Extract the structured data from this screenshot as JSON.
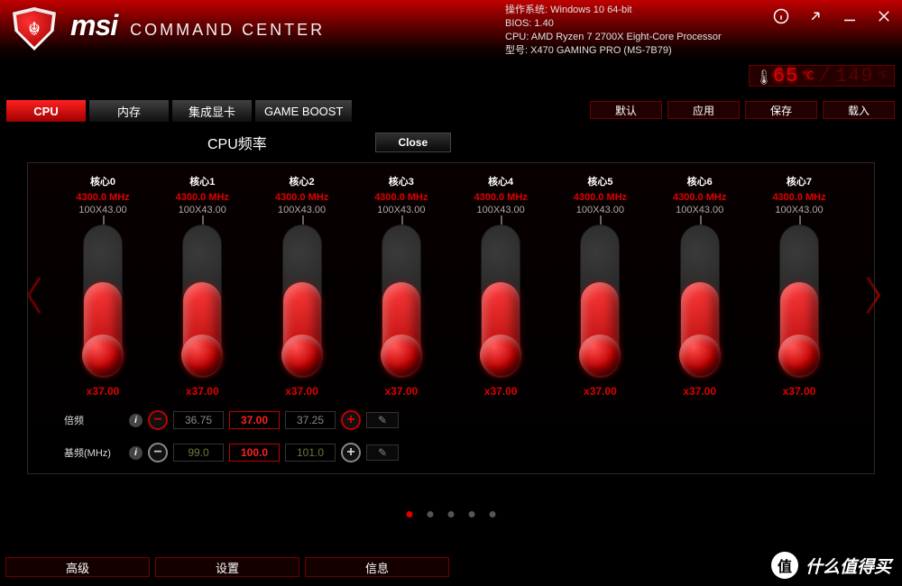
{
  "brand": {
    "msi": "msi",
    "cc": "COMMAND CENTER"
  },
  "sysinfo": {
    "os_k": "操作系统: ",
    "os_v": "Windows 10 64-bit",
    "bios_k": "BIOS: ",
    "bios_v": "1.40",
    "cpu_k": "CPU: ",
    "cpu_v": "AMD Ryzen 7 2700X Eight-Core Processor",
    "model_k": "型号: ",
    "model_v": "X470 GAMING PRO (MS-7B79)"
  },
  "temp": {
    "cpu": "65",
    "cpu_unit": "℃",
    "sep": "/",
    "other": "149",
    "other_unit": "℉"
  },
  "tabs": [
    {
      "label": "CPU",
      "active": true
    },
    {
      "label": "内存",
      "active": false
    },
    {
      "label": "集成显卡",
      "active": false
    },
    {
      "label": "GAME BOOST",
      "active": false
    }
  ],
  "actions": [
    "默认",
    "应用",
    "保存",
    "载入"
  ],
  "panel": {
    "title": "CPU频率",
    "close": "Close"
  },
  "cores": [
    {
      "name": "核心0",
      "freq": "4300.0 MHz",
      "mult": "100X43.00",
      "mval": "x37.00",
      "fill_pct": 62
    },
    {
      "name": "核心1",
      "freq": "4300.0 MHz",
      "mult": "100X43.00",
      "mval": "x37.00",
      "fill_pct": 62
    },
    {
      "name": "核心2",
      "freq": "4300.0 MHz",
      "mult": "100X43.00",
      "mval": "x37.00",
      "fill_pct": 62
    },
    {
      "name": "核心3",
      "freq": "4300.0 MHz",
      "mult": "100X43.00",
      "mval": "x37.00",
      "fill_pct": 62
    },
    {
      "name": "核心4",
      "freq": "4300.0 MHz",
      "mult": "100X43.00",
      "mval": "x37.00",
      "fill_pct": 62
    },
    {
      "name": "核心5",
      "freq": "4300.0 MHz",
      "mult": "100X43.00",
      "mval": "x37.00",
      "fill_pct": 62
    },
    {
      "name": "核心6",
      "freq": "4300.0 MHz",
      "mult": "100X43.00",
      "mval": "x37.00",
      "fill_pct": 62
    },
    {
      "name": "核心7",
      "freq": "4300.0 MHz",
      "mult": "100X43.00",
      "mval": "x37.00",
      "fill_pct": 62
    }
  ],
  "multiplier": {
    "label": "倍频",
    "prev": "36.75",
    "cur": "37.00",
    "next": "37.25"
  },
  "bclk": {
    "label": "基频(MHz)",
    "prev": "99.0",
    "cur": "100.0",
    "next": "101.0"
  },
  "dots": {
    "count": 5,
    "active": 0
  },
  "footer": [
    "高级",
    "设置",
    "信息"
  ],
  "watermark": {
    "badge": "值",
    "text": "什么值得买"
  },
  "colors": {
    "accent": "#e00000",
    "bg": "#000000",
    "panel_border": "#2a2a2a"
  }
}
